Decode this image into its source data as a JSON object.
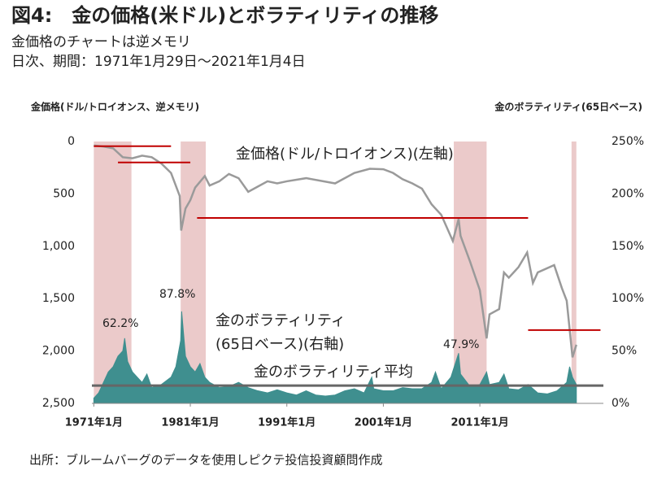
{
  "chart_data": {
    "type": "line",
    "title": "図4:　金の価格(米ドル)とボラティリティの推移",
    "subtitle": [
      "金価格のチャートは逆メモリ",
      "日次、期間：1971年1月29日～2021年1月4日"
    ],
    "y_label": "金価格(ドル/トロイオンス、逆メモリ)",
    "y2_label": "金のボラティリティ(65日ベース)",
    "source": "出所：ブルームバーグのデータを使用しピクテ投信投資顧問作成",
    "xlim": [
      1970.8,
      2023.8
    ],
    "xticks": [
      {
        "value": 1971,
        "label": "1971年1月"
      },
      {
        "value": 1981,
        "label": "1981年1月"
      },
      {
        "value": 1991,
        "label": "1991年1月"
      },
      {
        "value": 2001,
        "label": "2001年1月"
      },
      {
        "value": 2011,
        "label": "2011年1月"
      }
    ],
    "ylim": [
      2500,
      0
    ],
    "yticks": [
      0,
      500,
      {
        "value": 1000,
        "label": "1,000"
      },
      {
        "value": 1500,
        "label": "1,500"
      },
      {
        "value": 2000,
        "label": "2,000"
      },
      {
        "value": 2500,
        "label": "2,500"
      }
    ],
    "y2lim": [
      0,
      250
    ],
    "y2ticks": [
      {
        "value": 0,
        "label": "0%"
      },
      {
        "value": 50,
        "label": "50%"
      },
      {
        "value": 100,
        "label": "100%"
      },
      {
        "value": 150,
        "label": "150%"
      },
      {
        "value": 200,
        "label": "200%"
      },
      {
        "value": 250,
        "label": "250%"
      }
    ],
    "series": [
      {
        "name": "金価格(ドル/トロイオンス)(左軸)",
        "color": "#9a9a9a",
        "x": [
          1971,
          1972,
          1973,
          1974,
          1975,
          1976,
          1977,
          1978,
          1979,
          1979.9,
          1980.05,
          1980.5,
          1981,
          1981.5,
          1982.5,
          1983,
          1984,
          1985,
          1986,
          1987,
          1988,
          1989,
          1990,
          1991,
          1993,
          1996,
          1998,
          1999.6,
          2001,
          2002,
          2003,
          2004,
          2005,
          2006,
          2007,
          2008.2,
          2008.8,
          2009,
          2010,
          2011,
          2011.7,
          2012,
          2013,
          2013.5,
          2014,
          2015,
          2015.9,
          2016.5,
          2017,
          2018.7,
          2019.5,
          2020,
          2020.6,
          2021
        ],
        "values": [
          38,
          48,
          65,
          150,
          160,
          135,
          150,
          210,
          300,
          520,
          850,
          640,
          560,
          440,
          330,
          420,
          380,
          310,
          350,
          480,
          430,
          380,
          400,
          380,
          350,
          400,
          300,
          260,
          265,
          300,
          360,
          400,
          450,
          600,
          700,
          950,
          740,
          900,
          1150,
          1420,
          1880,
          1650,
          1600,
          1250,
          1300,
          1200,
          1060,
          1350,
          1250,
          1180,
          1400,
          1520,
          2060,
          1940
        ]
      },
      {
        "name": "金のボラティリティ(65日ベース)(右軸)",
        "color": "#3f8f8f",
        "axis": "y2",
        "x": [
          1971,
          1971.5,
          1972,
          1972.5,
          1973,
          1973.5,
          1974,
          1974.2,
          1974.5,
          1975,
          1975.5,
          1976,
          1976.5,
          1977,
          1978,
          1979,
          1979.5,
          1980,
          1980.1,
          1980.5,
          1981,
          1981.5,
          1982,
          1982.5,
          1983,
          1984,
          1985,
          1986,
          1987,
          1988,
          1989,
          1990,
          1991,
          1992,
          1993,
          1994,
          1995,
          1996,
          1997,
          1998,
          1999,
          1999.8,
          2000,
          2001,
          2002,
          2003,
          2004,
          2005,
          2006,
          2006.4,
          2007,
          2008,
          2008.8,
          2009,
          2010,
          2011,
          2011.7,
          2012,
          2013,
          2013.5,
          2014,
          2015,
          2016,
          2017,
          2018,
          2019,
          2020,
          2020.3,
          2020.6,
          2021
        ],
        "values": [
          5,
          10,
          20,
          30,
          35,
          45,
          50,
          62.2,
          40,
          30,
          25,
          20,
          28,
          15,
          18,
          25,
          35,
          60,
          87.8,
          45,
          35,
          30,
          38,
          25,
          20,
          15,
          16,
          20,
          15,
          12,
          10,
          13,
          10,
          8,
          12,
          8,
          7,
          8,
          12,
          14,
          10,
          25,
          14,
          12,
          12,
          15,
          14,
          14,
          20,
          30,
          14,
          25,
          47.9,
          28,
          16,
          18,
          30,
          18,
          20,
          28,
          14,
          13,
          18,
          10,
          9,
          12,
          20,
          35,
          25,
          18
        ]
      }
    ],
    "average": {
      "name": "金のボラティリティ平均",
      "value": 17,
      "color": "#666666"
    },
    "shaded_periods": [
      [
        1971,
        1974.9
      ],
      [
        1980,
        1982.6
      ],
      [
        2008.3,
        2011.7
      ],
      [
        2020.5,
        2021
      ]
    ],
    "shade_color": "#ebcaca",
    "reference_lines": [
      {
        "x": [
          1971,
          1979
        ],
        "value": 45
      },
      {
        "x": [
          1973.5,
          1981
        ],
        "value": 200
      },
      {
        "x": [
          1981.7,
          2016
        ],
        "value": 730
      },
      {
        "x": [
          2016,
          2023.5
        ],
        "value": 1800
      }
    ],
    "reference_color": "#c00000",
    "annotations": [
      "62.2%",
      "87.8%",
      "47.9%"
    ]
  }
}
